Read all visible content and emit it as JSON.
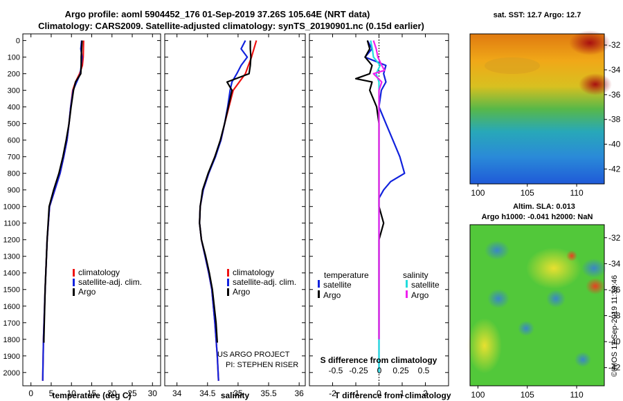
{
  "header": {
    "title_line1": "Argo profile: aoml 5904452_176 01-Sep-2019 37.26S 105.64E (NRT data)",
    "title_line2": "Climatology: CARS2009. Satellite-adjusted climatology: synTS_20190901.nc (0.15d earlier)"
  },
  "sst_map": {
    "title": "sat. SST: 12.7 Argo: 12.7",
    "lat_ticks": [
      "-32",
      "-34",
      "-36",
      "-38",
      "-40",
      "-42"
    ],
    "lon_ticks": [
      "100",
      "105",
      "110"
    ]
  },
  "sla_map": {
    "title_line1": "Altim. SLA: 0.013",
    "title_line2": "Argo h1000: -0.041 h2000: NaN",
    "lat_ticks": [
      "-32",
      "-34",
      "-36",
      "-38",
      "-40",
      "-42"
    ],
    "lon_ticks": [
      "100",
      "105",
      "110"
    ]
  },
  "credit": "©IMOS 11-Sep-2019 11:39:46",
  "colors": {
    "climatology": "#ee1111",
    "satellite": "#1122dd",
    "argo": "#000000",
    "satellite_s": "#22dddd",
    "argo_s": "#ee22ee"
  },
  "chart_data": [
    {
      "type": "line",
      "name": "temperature",
      "xlabel": "temperature (deg C)",
      "ylabel": "",
      "xlim": [
        -2,
        32
      ],
      "ylim": [
        2080,
        0
      ],
      "x_ticks": [
        0,
        5,
        10,
        15,
        20,
        25,
        30
      ],
      "y_ticks": [
        0,
        100,
        200,
        300,
        400,
        500,
        600,
        700,
        800,
        900,
        1000,
        1100,
        1200,
        1300,
        1400,
        1500,
        1600,
        1700,
        1800,
        1900,
        2000
      ],
      "legend": {
        "position": "lower-right",
        "entries": [
          "climatology",
          "satellite-adj. clim.",
          "Argo"
        ]
      },
      "series": [
        {
          "name": "climatology",
          "color": "#ee1111",
          "depth": [
            0,
            100,
            150,
            200,
            250,
            300,
            400,
            500,
            600,
            700,
            800,
            900,
            1000,
            1200,
            1500,
            1800,
            2050
          ],
          "values": [
            13.0,
            12.9,
            12.7,
            12.0,
            11.0,
            10.3,
            9.8,
            9.4,
            8.9,
            8.1,
            7.2,
            5.9,
            4.6,
            4.0,
            3.5,
            3.1,
            2.9
          ]
        },
        {
          "name": "satellite-adj. clim.",
          "color": "#1122dd",
          "depth": [
            0,
            50,
            100,
            150,
            200,
            250,
            300,
            400,
            500,
            600,
            700,
            800,
            900,
            1000,
            1200,
            1500,
            1800,
            2050
          ],
          "values": [
            12.5,
            12.3,
            12.6,
            12.4,
            12.2,
            11.3,
            10.4,
            9.8,
            9.4,
            8.9,
            8.1,
            7.2,
            5.9,
            4.6,
            4.0,
            3.5,
            3.1,
            2.9
          ]
        },
        {
          "name": "Argo",
          "color": "#000000",
          "depth": [
            0,
            50,
            100,
            150,
            200,
            250,
            300,
            400,
            500,
            600,
            700,
            800,
            900,
            1000,
            1200,
            1500,
            1800,
            1820
          ],
          "values": [
            12.6,
            12.5,
            12.4,
            12.4,
            12.3,
            11.0,
            10.5,
            9.9,
            9.4,
            8.7,
            7.9,
            6.9,
            5.6,
            4.5,
            4.0,
            3.5,
            3.2,
            3.2
          ]
        }
      ]
    },
    {
      "type": "line",
      "name": "salinity",
      "xlabel": "salinity",
      "xlim": [
        33.8,
        36.1
      ],
      "ylim": [
        2080,
        0
      ],
      "x_ticks": [
        34,
        34.5,
        35,
        35.5,
        36
      ],
      "legend": {
        "position": "lower-right",
        "entries": [
          "climatology",
          "satellite-adj. clim.",
          "Argo"
        ]
      },
      "annotations": [
        "US ARGO PROJECT",
        "PI: STEPHEN RISER"
      ],
      "series": [
        {
          "name": "climatology",
          "color": "#ee1111",
          "depth": [
            0,
            100,
            200,
            300,
            400,
            500,
            600,
            700,
            800,
            900,
            1000,
            1100,
            1200,
            1300,
            1400,
            1500,
            1700,
            1900,
            2050
          ],
          "values": [
            35.3,
            35.22,
            35.12,
            34.92,
            34.85,
            34.78,
            34.72,
            34.62,
            34.52,
            34.43,
            34.38,
            34.37,
            34.4,
            34.46,
            34.52,
            34.57,
            34.62,
            34.66,
            34.68
          ]
        },
        {
          "name": "satellite-adj. clim.",
          "color": "#1122dd",
          "depth": [
            0,
            50,
            100,
            150,
            200,
            250,
            300,
            400,
            500,
            600,
            700,
            800,
            900,
            1000,
            1100,
            1200,
            1300,
            1400,
            1500,
            1700,
            1900,
            2050
          ],
          "values": [
            35.12,
            35.05,
            35.15,
            35.05,
            34.98,
            34.9,
            34.87,
            34.83,
            34.78,
            34.72,
            34.63,
            34.52,
            34.43,
            34.38,
            34.37,
            34.4,
            34.46,
            34.52,
            34.57,
            34.62,
            34.66,
            34.68
          ]
        },
        {
          "name": "Argo",
          "color": "#000000",
          "depth": [
            0,
            50,
            100,
            150,
            200,
            250,
            300,
            400,
            500,
            600,
            700,
            800,
            900,
            1000,
            1100,
            1200,
            1300,
            1400,
            1500,
            1700,
            1820
          ],
          "values": [
            35.2,
            35.2,
            35.21,
            35.2,
            35.18,
            34.82,
            34.9,
            34.84,
            34.78,
            34.71,
            34.62,
            34.51,
            34.42,
            34.38,
            34.37,
            34.4,
            34.47,
            34.53,
            34.58,
            34.64,
            34.66
          ]
        }
      ]
    },
    {
      "type": "line",
      "name": "difference",
      "xlabel": "T difference from climatology",
      "top_axis_label": "S difference from climatology",
      "xlim": [
        -3,
        3
      ],
      "ylim": [
        2080,
        0
      ],
      "x_ticks": [
        -2,
        -1,
        0,
        1,
        2
      ],
      "top_ticks": [
        "-0.5",
        "-0.25",
        "0",
        "0.25",
        "0.5"
      ],
      "legend": {
        "position": "lower",
        "groups": [
          {
            "title": "temperature",
            "entries": [
              "satellite",
              "Argo"
            ]
          },
          {
            "title": "salinity",
            "entries": [
              "satellite",
              "Argo"
            ]
          }
        ]
      },
      "series": [
        {
          "name": "temperature satellite",
          "color": "#1122dd",
          "depth": [
            0,
            50,
            100,
            150,
            200,
            250,
            300,
            400,
            500,
            600,
            700,
            800,
            850,
            900,
            950,
            1000,
            1200,
            1500,
            1800,
            2000
          ],
          "values": [
            -0.5,
            -0.3,
            -0.6,
            0.3,
            0.2,
            0.3,
            0.1,
            0.0,
            0.3,
            0.6,
            0.9,
            1.1,
            0.5,
            0.2,
            0.0,
            0.0,
            0.0,
            0.0,
            0.0,
            0.0
          ]
        },
        {
          "name": "temperature Argo",
          "color": "#000000",
          "depth": [
            0,
            50,
            100,
            150,
            200,
            230,
            250,
            300,
            400,
            500,
            600,
            800,
            900,
            1000,
            1100,
            1200,
            1500,
            1800
          ],
          "values": [
            -0.5,
            -0.4,
            -0.6,
            -0.3,
            -0.4,
            -1.0,
            -0.3,
            -0.4,
            -0.1,
            0.0,
            0.0,
            0.0,
            0.0,
            0.0,
            0.2,
            0.0,
            0.0,
            0.0
          ]
        },
        {
          "name": "salinity satellite",
          "color": "#22dddd",
          "depth": [
            0,
            50,
            100,
            150,
            200,
            250,
            300,
            400,
            500,
            600,
            800,
            1000,
            1200,
            1500,
            1800,
            2000
          ],
          "values": [
            -0.15,
            -0.12,
            -0.1,
            0.02,
            -0.05,
            0.0,
            0.0,
            0.0,
            0.0,
            0.0,
            0.0,
            0.0,
            0.0,
            0.0,
            0.0,
            0.0
          ]
        },
        {
          "name": "salinity Argo",
          "color": "#ee22ee",
          "depth": [
            0,
            50,
            100,
            150,
            180,
            200,
            250,
            300,
            400,
            600,
            800,
            1000,
            1200,
            1500,
            1800
          ],
          "values": [
            -0.1,
            -0.05,
            -0.02,
            0.05,
            0.1,
            -0.1,
            0.05,
            0.0,
            0.0,
            0.0,
            0.0,
            0.0,
            0.0,
            0.0,
            0.0
          ]
        }
      ]
    }
  ]
}
